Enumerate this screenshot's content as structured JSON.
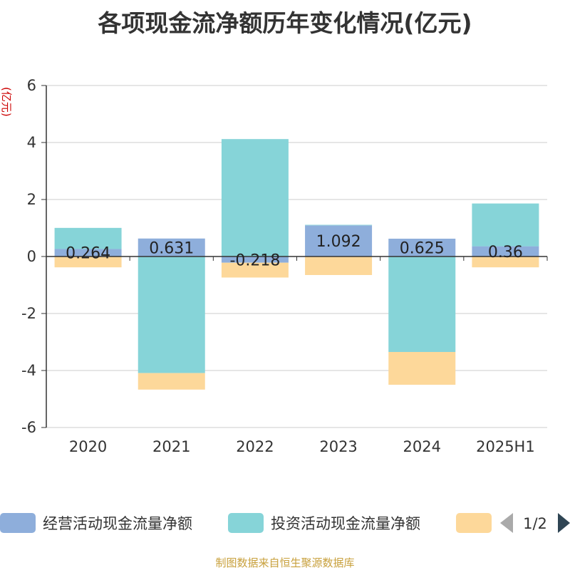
{
  "title": "各项现金流净额历年变化情况(亿元)",
  "source": "制图数据来自恒生聚源数据库",
  "y_unit": "(亿元)",
  "legend": {
    "page": "1/2",
    "items": [
      "经营活动现金流量净额",
      "投资活动现金流量净额",
      ""
    ]
  },
  "colors": {
    "operating": "#8eaedb",
    "investing": "#86d4d8",
    "financing": "#fdd89a",
    "axis": "#333333",
    "grid": "#cccccc",
    "unit": "#cc0000",
    "nav_prev": "#aaaaaa",
    "nav_next": "#2f4554"
  },
  "chart_data": {
    "type": "bar",
    "stacked": true,
    "categories": [
      "2020",
      "2021",
      "2022",
      "2023",
      "2024",
      "2025H1"
    ],
    "series": [
      {
        "name": "经营活动现金流量净额",
        "values": [
          0.264,
          0.631,
          -0.218,
          1.092,
          0.625,
          0.36
        ]
      },
      {
        "name": "投资活动现金流量净额",
        "values": [
          0.74,
          -4.09,
          4.12,
          0.02,
          -3.35,
          1.5
        ]
      },
      {
        "values": [
          -0.38,
          -0.58,
          -0.52,
          -0.65,
          -1.15,
          -0.38
        ]
      }
    ],
    "data_labels": [
      "0.264",
      "0.631",
      "-0.218",
      "1.092",
      "0.625",
      "0.36"
    ],
    "ylim": [
      -6,
      6
    ],
    "yticks": [
      6,
      4,
      2,
      0,
      -2,
      -4,
      -6
    ],
    "grid": true,
    "legend_position": "bottom"
  }
}
